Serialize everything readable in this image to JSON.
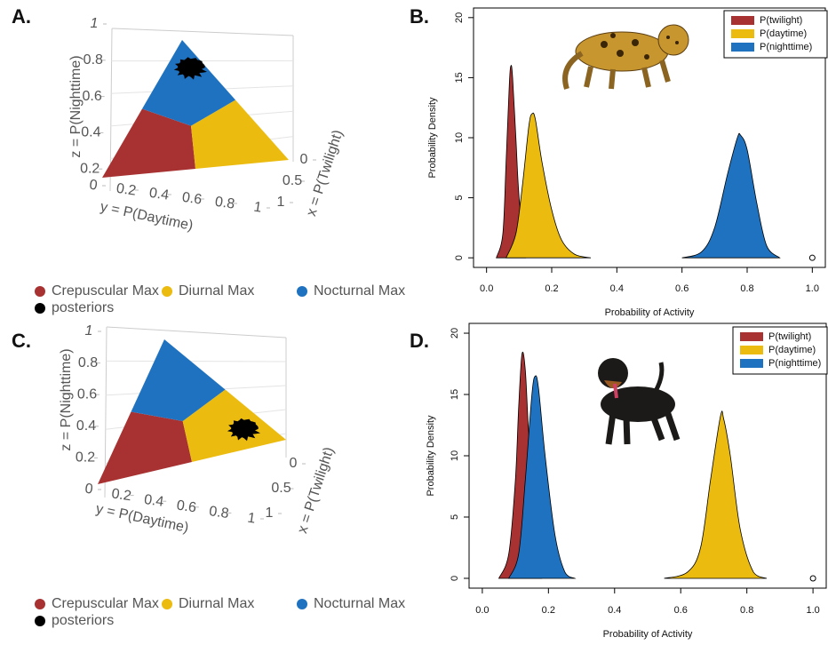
{
  "chart_data": [
    {
      "type": "ternary3d",
      "title": "A.",
      "axes": {
        "z": {
          "title": "z = P(Nighttime)",
          "ticks": [
            0.2,
            0.4,
            0.6,
            0.8,
            1
          ]
        },
        "y": {
          "title": "y = P(Daytime)",
          "ticks": [
            0,
            0.2,
            0.4,
            0.6,
            0.8,
            1
          ]
        },
        "x": {
          "title": "x = P(Twilight)",
          "ticks": [
            0,
            0.5,
            1
          ]
        }
      },
      "regions": [
        {
          "name": "Crepuscular Max",
          "color": "#a83232"
        },
        {
          "name": "Diurnal Max",
          "color": "#ebbb10"
        },
        {
          "name": "Nocturnal Max",
          "color": "#1f72c0"
        }
      ],
      "posteriors": {
        "name": "posteriors",
        "color": "#000000",
        "x": 0.08,
        "y": 0.14,
        "z": 0.78
      }
    },
    {
      "type": "density",
      "title": "B.",
      "xlabel": "Probability of Activity",
      "ylabel": "Probability Density",
      "xlim": [
        -0.04,
        1.04
      ],
      "ylim": [
        -0.8,
        20.8
      ],
      "xticks": [
        {
          "value": 0,
          "label": "0.0"
        },
        0.2,
        0.4,
        0.6,
        0.8,
        {
          "value": 1,
          "label": "1.0"
        }
      ],
      "yticks": [
        0,
        5,
        10,
        15,
        20
      ],
      "legend": "top-right",
      "series": [
        {
          "name": "P(twilight)",
          "color": "#a83232",
          "x": [
            0.03,
            0.05,
            0.06,
            0.07,
            0.075,
            0.08,
            0.09,
            0.1,
            0.12
          ],
          "values": [
            0,
            2,
            8,
            14.5,
            16,
            15,
            10,
            5,
            0
          ]
        },
        {
          "name": "P(daytime)",
          "color": "#ebbb10",
          "x": [
            0.06,
            0.09,
            0.11,
            0.13,
            0.14,
            0.15,
            0.17,
            0.2,
            0.23,
            0.27,
            0.32
          ],
          "values": [
            0,
            2,
            6,
            11,
            12,
            11.5,
            8,
            4,
            1.5,
            0.3,
            0
          ]
        },
        {
          "name": "P(nighttime)",
          "color": "#1f72c0",
          "x": [
            0.6,
            0.66,
            0.7,
            0.74,
            0.77,
            0.78,
            0.8,
            0.83,
            0.86,
            0.9
          ],
          "values": [
            0,
            0.5,
            2.5,
            7,
            10,
            10.2,
            9,
            4.5,
            1,
            0
          ]
        }
      ],
      "marker": {
        "x": 1,
        "y": 0
      }
    },
    {
      "type": "ternary3d",
      "title": "C.",
      "axes": {
        "z": {
          "title": "z = P(Nighttime)",
          "ticks": [
            0.2,
            0.4,
            0.6,
            0.8,
            1
          ]
        },
        "y": {
          "title": "y = P(Daytime)",
          "ticks": [
            0,
            0.2,
            0.4,
            0.6,
            0.8,
            1
          ]
        },
        "x": {
          "title": "x = P(Twilight)",
          "ticks": [
            0,
            0.5,
            1
          ]
        }
      },
      "regions": [
        {
          "name": "Crepuscular Max",
          "color": "#a83232"
        },
        {
          "name": "Diurnal Max",
          "color": "#ebbb10"
        },
        {
          "name": "Nocturnal Max",
          "color": "#1f72c0"
        }
      ],
      "posteriors": {
        "name": "posteriors",
        "color": "#000000",
        "x": 0.12,
        "y": 0.72,
        "z": 0.16
      }
    },
    {
      "type": "density",
      "title": "D.",
      "xlabel": "Probability of Activity",
      "ylabel": "Probability Density",
      "xlim": [
        -0.04,
        1.04
      ],
      "ylim": [
        -0.8,
        20.8
      ],
      "xticks": [
        {
          "value": 0,
          "label": "0.0"
        },
        0.2,
        0.4,
        0.6,
        0.8,
        {
          "value": 1,
          "label": "1.0"
        }
      ],
      "yticks": [
        0,
        5,
        10,
        15,
        20
      ],
      "legend": "top-right",
      "series": [
        {
          "name": "P(twilight)",
          "color": "#a83232",
          "x": [
            0.05,
            0.08,
            0.1,
            0.11,
            0.12,
            0.13,
            0.14,
            0.16,
            0.18
          ],
          "values": [
            0,
            2,
            8,
            14,
            18.3,
            17,
            12,
            4,
            0
          ]
        },
        {
          "name": "P(daytime)",
          "color": "#ebbb10",
          "x": [
            0.55,
            0.62,
            0.66,
            0.69,
            0.72,
            0.73,
            0.75,
            0.78,
            0.82,
            0.86
          ],
          "values": [
            0,
            0.5,
            2.5,
            8,
            13.2,
            13,
            10,
            4,
            0.5,
            0
          ]
        },
        {
          "name": "P(nighttime)",
          "color": "#1f72c0",
          "x": [
            0.08,
            0.11,
            0.13,
            0.15,
            0.16,
            0.17,
            0.19,
            0.22,
            0.25,
            0.28
          ],
          "values": [
            0,
            2,
            8,
            15,
            16.5,
            15.5,
            10,
            3.5,
            0.5,
            0
          ]
        }
      ],
      "marker": {
        "x": 1,
        "y": 0
      }
    }
  ]
}
